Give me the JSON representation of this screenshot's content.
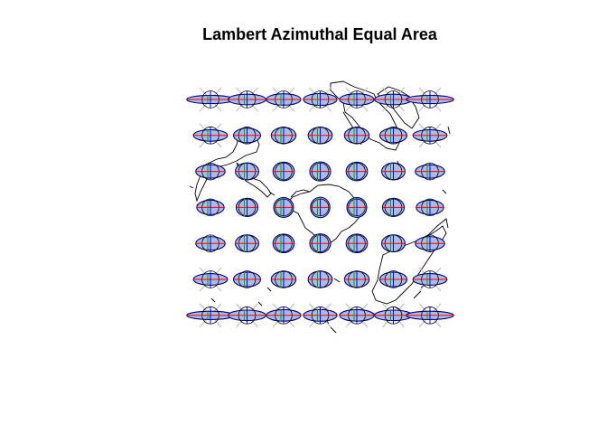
{
  "title": "Lambert Azimuthal Equal Area",
  "colors": {
    "ellipse_fill": "#aabbe6",
    "ellipse_stroke": "#000080",
    "axis_major": "#ff0000",
    "axis_minor": "#00aa00",
    "axis_vertical": "#0000ff",
    "diagonal": "#c0c0c0",
    "coast": "#000000"
  },
  "chart_data": {
    "type": "tissot-indicatrix-map",
    "projection": "Lambert Azimuthal Equal Area",
    "grid": {
      "columns": 7,
      "rows": 7
    },
    "distortion_rows": [
      3.0,
      1.55,
      1.15,
      1.0,
      1.15,
      1.55,
      3.0
    ],
    "distortion_cols": [
      1.9,
      1.2,
      1.0,
      0.95,
      1.0,
      1.2,
      1.9
    ]
  }
}
